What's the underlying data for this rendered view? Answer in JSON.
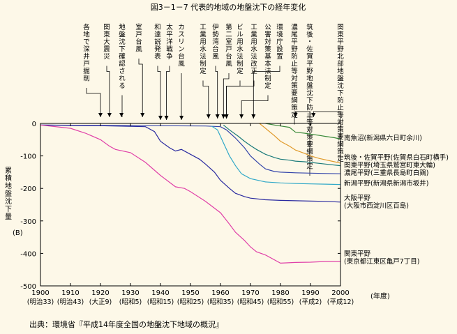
{
  "title": "図3－1－7  代表的地域の地盤沈下の経年変化",
  "source_note": "出典：環境省『平成14年度全国の地盤沈下地域の概況』",
  "chart_data": {
    "type": "line",
    "ylabel": "累積地盤沈下量",
    "yunit": "(B)",
    "xunit": "(年度)",
    "xlim": [
      1900,
      2000
    ],
    "ylim": [
      -500,
      0
    ],
    "x_ticks": [
      1900,
      1910,
      1920,
      1930,
      1940,
      1950,
      1960,
      1970,
      1980,
      1990,
      2000
    ],
    "y_ticks": [
      0,
      -100,
      -200,
      -300,
      -400,
      -500
    ],
    "era_labels": [
      "(明治33)",
      "(明治43)",
      "(大正9)",
      "(昭和5)",
      "(昭和15)",
      "(昭和25)",
      "(昭和35)",
      "(昭和45)",
      "(昭和55)",
      "(平成2)",
      "(平成12)"
    ],
    "series": [
      {
        "name": "南魚沼(新潟県六日町余川)",
        "label_lines": [
          "南魚沼(新潟県六日町余川)"
        ],
        "color": "#3a8a3a",
        "x": [
          1975,
          1978,
          1980,
          1983,
          1985,
          1988,
          1990,
          1993,
          1995,
          1998,
          2000
        ],
        "y": [
          0,
          -5,
          -8,
          -12,
          -27,
          -30,
          -33,
          -37,
          -40,
          -44,
          -48
        ]
      },
      {
        "name": "筑後・佐賀平野(佐賀県白石町横手)",
        "label_lines": [
          "筑後・佐賀平野(佐賀県白石町横手)"
        ],
        "color": "#e09a2a",
        "x": [
          1973,
          1975,
          1978,
          1980,
          1983,
          1985,
          1988,
          1990,
          1993,
          1995,
          1998,
          2000
        ],
        "y": [
          0,
          -15,
          -38,
          -55,
          -70,
          -82,
          -92,
          -100,
          -108,
          -112,
          -118,
          -122
        ]
      },
      {
        "name": "関東平野(埼玉県鷲宮町東大輪)",
        "label_lines": [
          "関東平野(埼玉県鷲宮町東大輪)"
        ],
        "color": "#1a7a7a",
        "x": [
          1961,
          1963,
          1966,
          1968,
          1970,
          1972,
          1975,
          1978,
          1980,
          1983,
          1985,
          1988,
          1990,
          1995,
          2000
        ],
        "y": [
          -5,
          -20,
          -40,
          -55,
          -68,
          -80,
          -95,
          -105,
          -110,
          -113,
          -116,
          -118,
          -120,
          -125,
          -130
        ]
      },
      {
        "name": "濃尾平野(三重県長島町白鶏)",
        "label_lines": [
          "濃尾平野(三重県長島町白鶏)"
        ],
        "color": "#3344aa",
        "x": [
          1900,
          1920,
          1940,
          1955,
          1960,
          1962,
          1965,
          1968,
          1970,
          1973,
          1975,
          1978,
          1980,
          1985,
          1990,
          1995,
          2000
        ],
        "y": [
          -5,
          -6,
          -7,
          -8,
          -10,
          -20,
          -45,
          -75,
          -100,
          -125,
          -140,
          -148,
          -150,
          -152,
          -153,
          -154,
          -155
        ]
      },
      {
        "name": "新潟平野(新潟県新潟市坂井)",
        "label_lines": [
          "新潟平野(新潟県新潟市坂井)"
        ],
        "color": "#30a8c8",
        "x": [
          1957,
          1959,
          1961,
          1963,
          1965,
          1967,
          1970,
          1975,
          1980,
          1985,
          1990,
          1995,
          2000
        ],
        "y": [
          -8,
          -20,
          -60,
          -100,
          -130,
          -155,
          -170,
          -180,
          -183,
          -185,
          -186,
          -187,
          -188
        ]
      },
      {
        "name": "大阪平野(大阪市西淀川区百島)",
        "label_lines": [
          "大阪平野",
          "(大阪市西淀川区百島)"
        ],
        "color": "#2a2aa0",
        "x": [
          1900,
          1920,
          1935,
          1938,
          1940,
          1943,
          1945,
          1947,
          1950,
          1953,
          1955,
          1958,
          1960,
          1963,
          1965,
          1968,
          1970,
          1975,
          1980,
          1985,
          1990,
          1995,
          2000
        ],
        "y": [
          -5,
          -7,
          -10,
          -25,
          -55,
          -75,
          -85,
          -80,
          -95,
          -110,
          -125,
          -150,
          -175,
          -200,
          -215,
          -225,
          -230,
          -235,
          -237,
          -238,
          -239,
          -240,
          -242
        ]
      },
      {
        "name": "関東平野(東京都江東区亀戸7丁目)",
        "label_lines": [
          "関東平野",
          "(東京都江東区亀戸7丁目)"
        ],
        "color": "#e040a8",
        "x": [
          1900,
          1910,
          1915,
          1920,
          1923,
          1925,
          1930,
          1935,
          1940,
          1945,
          1948,
          1950,
          1955,
          1960,
          1963,
          1965,
          1968,
          1970,
          1972,
          1975,
          1980,
          1985,
          1990,
          1995,
          2000
        ],
        "y": [
          -5,
          -15,
          -30,
          -50,
          -70,
          -80,
          -90,
          -120,
          -160,
          -195,
          -200,
          -210,
          -240,
          -275,
          -310,
          -335,
          -360,
          -380,
          -395,
          -405,
          -430,
          -428,
          -427,
          -425,
          -425
        ]
      }
    ],
    "events": [
      {
        "text": "各地で深井戸掘削",
        "year": 1920
      },
      {
        "text": "関東大震災",
        "year": 1923
      },
      {
        "text": "地盤沈下確認される",
        "year": 1927
      },
      {
        "text": "室戸台風",
        "year": 1934
      },
      {
        "text": "和達説発表",
        "year": 1940
      },
      {
        "text": "太平洋戦争",
        "year": 1942
      },
      {
        "text": "カスリン台風",
        "year": 1947
      },
      {
        "text": "工業用水法制定",
        "year": 1956
      },
      {
        "text": "伊勢湾台風",
        "year": 1959
      },
      {
        "text": "第二室戸台風",
        "year": 1961
      },
      {
        "text": "ビル用水法制定",
        "year": 1962
      },
      {
        "text": "工業用水法改正",
        "year": 1962
      },
      {
        "text": "公害対策基本法制定",
        "year": 1967
      },
      {
        "text": "環境庁設置",
        "year": 1971
      },
      {
        "text": "濃尾平野防止等対策要綱策定",
        "year": 1985
      },
      {
        "text": "筑後・佐賀平野地盤沈下防止等対策要綱策定",
        "year": 1985
      },
      {
        "text": "関東平野北部地盤沈下防止等対策要綱策定",
        "year": 1991
      }
    ]
  }
}
